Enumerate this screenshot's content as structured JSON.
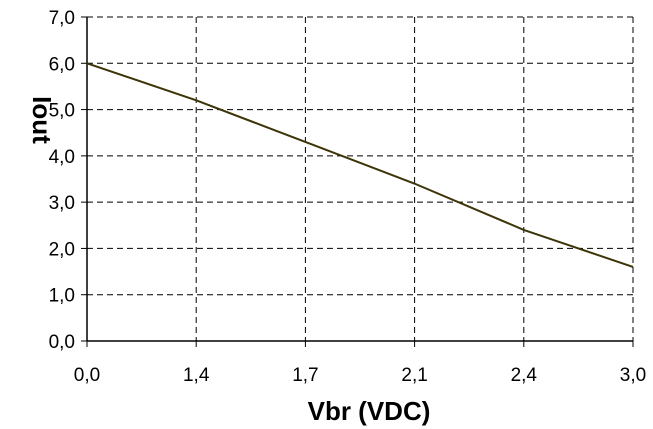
{
  "chart_data": {
    "type": "line",
    "xlabel": "Vbr (VDC)",
    "ylabel": "Iout",
    "x_ticks": [
      "0,0",
      "1,4",
      "1,7",
      "2,1",
      "2,4",
      "3,0"
    ],
    "y_ticks": [
      "0,0",
      "1,0",
      "2,0",
      "3,0",
      "4,0",
      "5,0",
      "6,0",
      "7,0"
    ],
    "ylim": [
      0,
      7
    ],
    "grid": true,
    "series": [
      {
        "values": [
          6.0,
          5.2,
          4.3,
          3.4,
          2.4,
          1.6
        ]
      }
    ],
    "line_color": "#3d3408"
  }
}
